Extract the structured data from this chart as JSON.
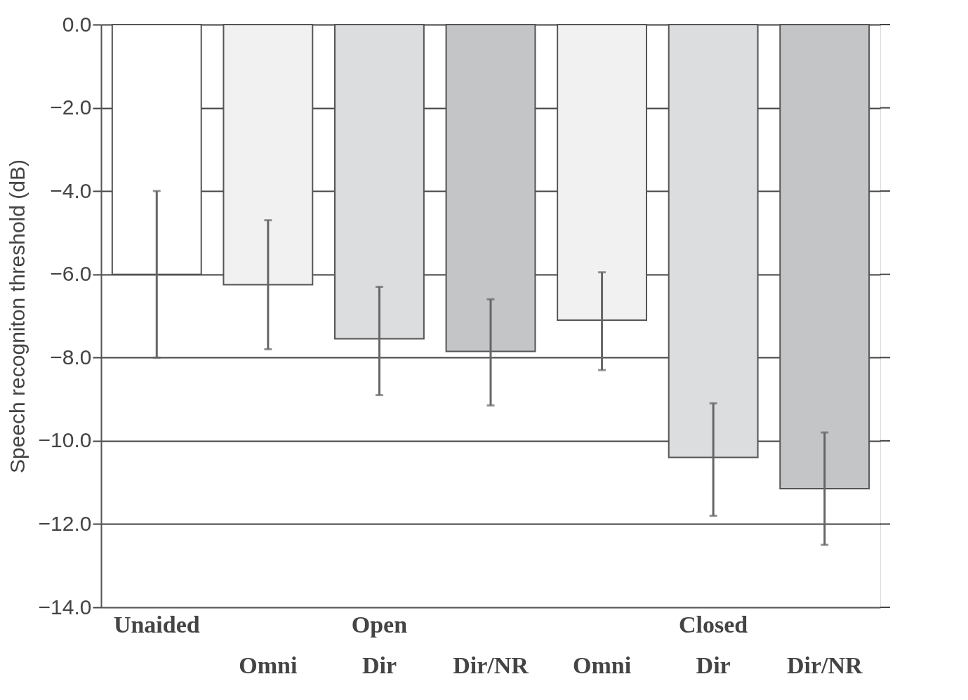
{
  "chart_data": {
    "type": "bar",
    "ylabel": "Speech recogniton threshold (dB)",
    "categories": [
      "Unaided",
      "\nOmni",
      "Open\nDir",
      "\nDir/NR",
      "\nOmni",
      "Closed\nDir",
      "\nDir/NR"
    ],
    "values": [
      -6.0,
      -6.25,
      -7.55,
      -7.85,
      -7.1,
      -10.4,
      -11.15
    ],
    "errors": [
      [
        -8.0,
        -4.0
      ],
      [
        -7.8,
        -4.7
      ],
      [
        -8.9,
        -6.3
      ],
      [
        -9.15,
        -6.6
      ],
      [
        -8.3,
        -5.95
      ],
      [
        -11.8,
        -9.1
      ],
      [
        -12.5,
        -9.8
      ]
    ],
    "colors": [
      "#ffffff",
      "#f0f1f0",
      "#dcdddf",
      "#c4c5c7",
      "#f0f1f0",
      "#dcdddf",
      "#c4c5c7"
    ],
    "ylim": [
      -14,
      0
    ],
    "yticks": [
      {
        "value": 0,
        "label": "0.0"
      },
      {
        "value": -2,
        "label": "−2.0"
      },
      {
        "value": -4,
        "label": "−4.0"
      },
      {
        "value": -6,
        "label": "−6.0"
      },
      {
        "value": -8,
        "label": "−8.0"
      },
      {
        "value": -10,
        "label": "−10.0"
      },
      {
        "value": -12,
        "label": "−12.0"
      },
      {
        "value": -14,
        "label": "−14.0"
      }
    ],
    "grid": "y"
  }
}
